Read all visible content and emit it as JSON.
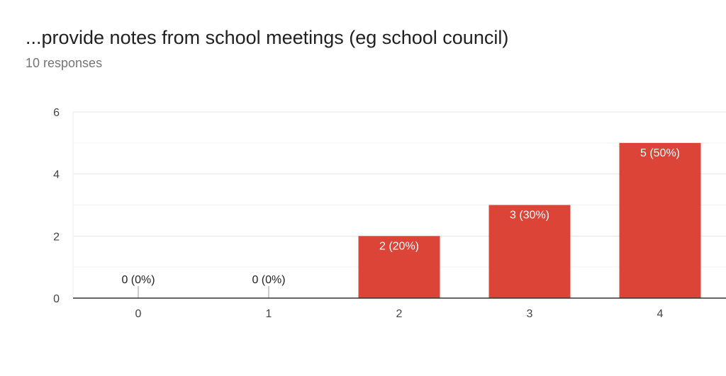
{
  "title": "...provide notes from school meetings (eg school council)",
  "subtitle": "10 responses",
  "chart_data": {
    "type": "bar",
    "title": "...provide notes from school meetings (eg school council)",
    "categories": [
      "0",
      "1",
      "2",
      "3",
      "4"
    ],
    "values": [
      0,
      0,
      2,
      3,
      5
    ],
    "data_labels": [
      "0 (0%)",
      "0 (0%)",
      "2 (20%)",
      "3 (30%)",
      "5 (50%)"
    ],
    "xlabel": "",
    "ylabel": "",
    "ylim": [
      0,
      6
    ],
    "yticks": [
      "0",
      "2",
      "4",
      "6"
    ],
    "grid": true,
    "bar_color": "#db4437"
  }
}
